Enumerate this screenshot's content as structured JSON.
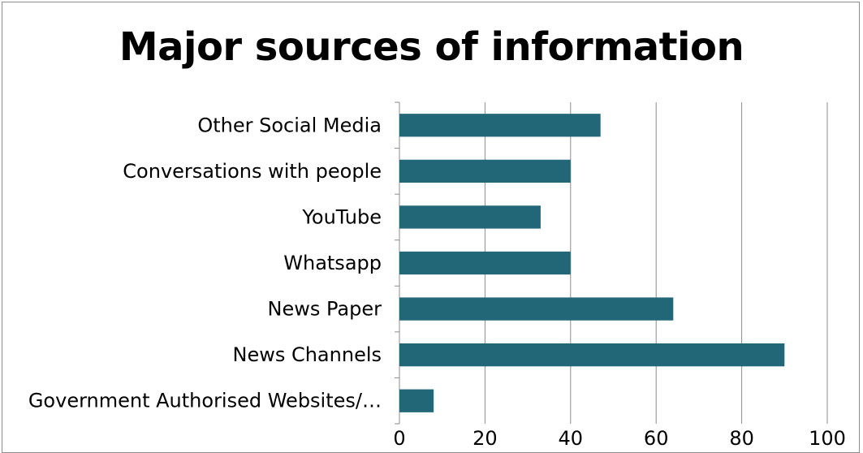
{
  "chart_data": {
    "type": "bar",
    "orientation": "horizontal",
    "title": "Major sources of information",
    "categories": [
      "Other Social Media",
      "Conversations with people",
      "YouTube",
      "Whatsapp",
      "News Paper",
      "News Channels",
      "Government Authorised Websites/…"
    ],
    "values": [
      47,
      40,
      33,
      40,
      64,
      90,
      8
    ],
    "xlim": [
      0,
      100
    ],
    "xticks": [
      0,
      20,
      40,
      60,
      80,
      100
    ],
    "grid": true,
    "colors": {
      "bar": "#216778",
      "grid": "#8c8c8c",
      "axis": "#8c8c8c"
    }
  }
}
